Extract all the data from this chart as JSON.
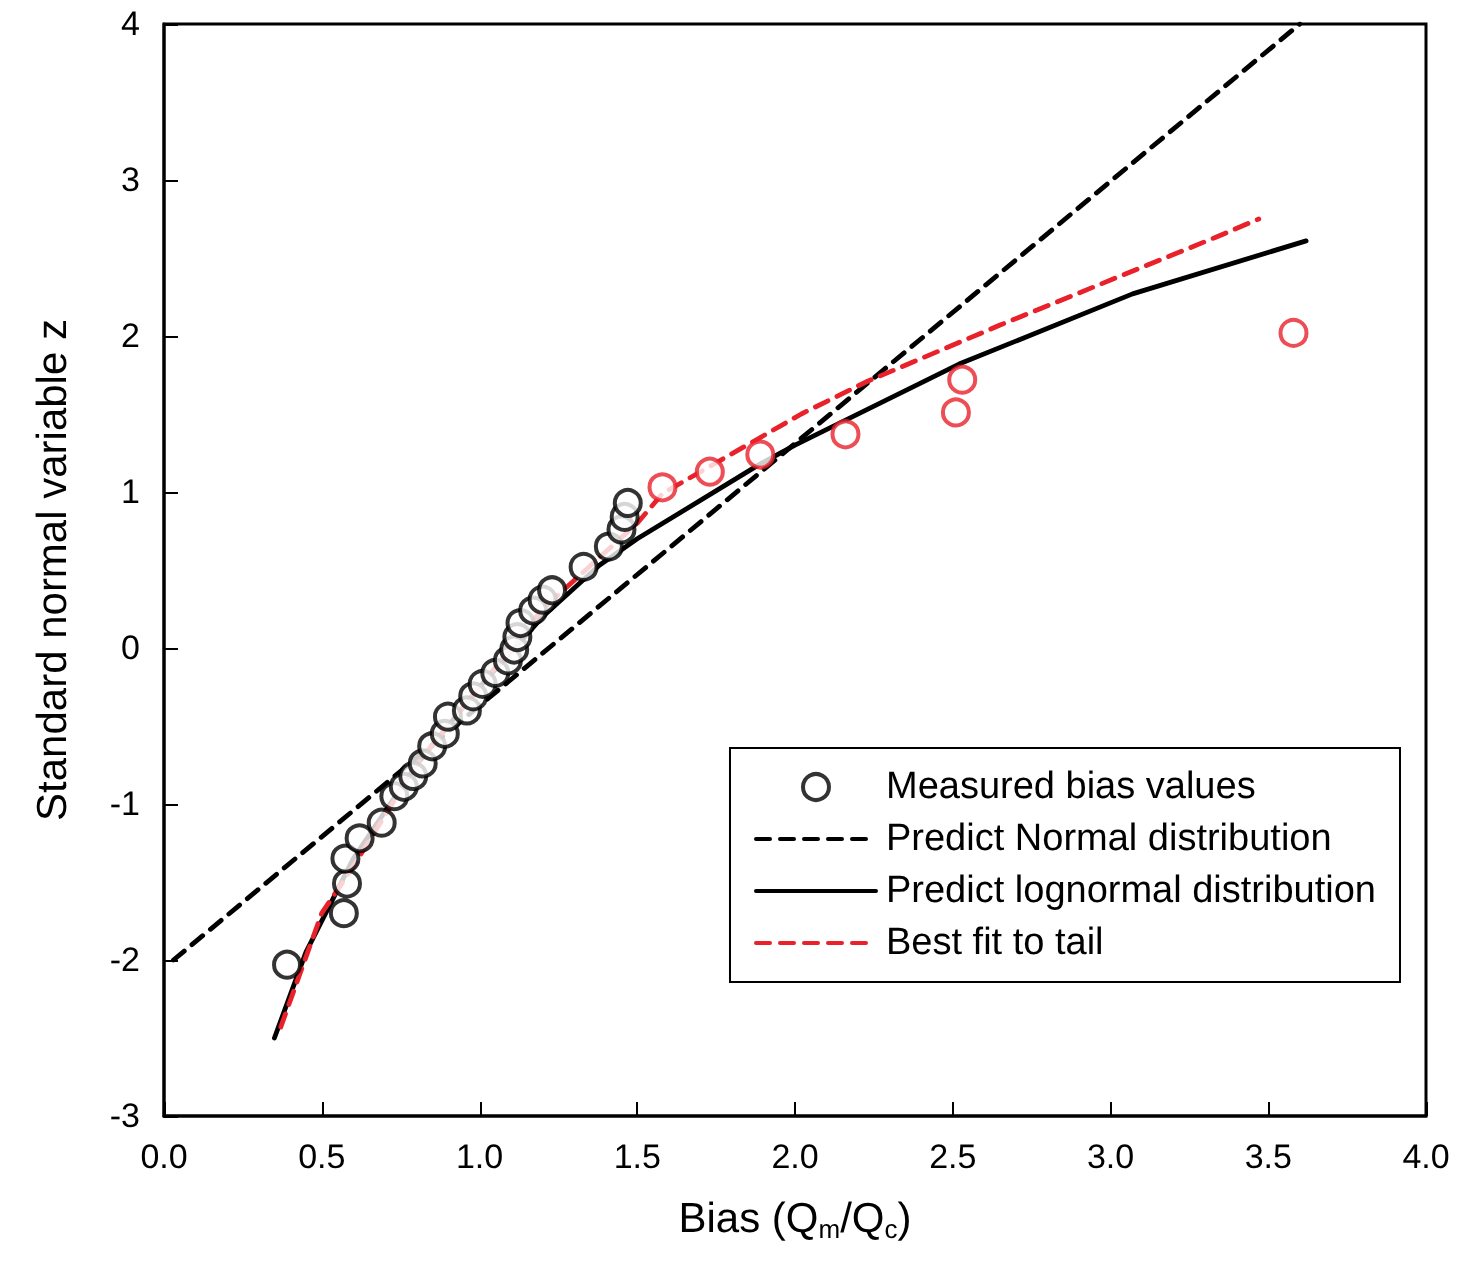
{
  "chart_data": {
    "type": "scatter",
    "xlabel": "Bias (Q$_{m}$/Q$_{c}$)",
    "ylabel": "Standard normal variable z",
    "xlim": [
      0,
      4
    ],
    "ylim": [
      -3,
      4
    ],
    "xticks": [
      {
        "value": 0,
        "label": "0.0"
      },
      {
        "value": 0.5,
        "label": "0.5"
      },
      {
        "value": 1,
        "label": "1.0"
      },
      {
        "value": 1.5,
        "label": "1.5"
      },
      {
        "value": 2,
        "label": "2.0"
      },
      {
        "value": 2.5,
        "label": "2.5"
      },
      {
        "value": 3,
        "label": "3.0"
      },
      {
        "value": 3.5,
        "label": "3.5"
      },
      {
        "value": 4,
        "label": "4.0"
      }
    ],
    "yticks": [
      -3,
      -2,
      -1,
      0,
      1,
      2,
      3,
      4
    ],
    "grid": false,
    "legend": "bottom right",
    "series": [
      {
        "name": "Measured bias values",
        "marker": "circle",
        "color": "#000000",
        "x": [
          0.39,
          0.57,
          0.58,
          0.575,
          0.62,
          0.69,
          0.73,
          0.76,
          0.79,
          0.82,
          0.85,
          0.89,
          0.9,
          0.96,
          0.98,
          1.01,
          1.05,
          1.09,
          1.11,
          1.12,
          1.13,
          1.17,
          1.2,
          1.23,
          1.33,
          1.41,
          1.45,
          1.46,
          1.47
        ],
        "values": [
          -2.03,
          -1.7,
          -1.51,
          -1.35,
          -1.22,
          -1.12,
          -0.95,
          -0.89,
          -0.82,
          -0.74,
          -0.63,
          -0.55,
          -0.44,
          -0.4,
          -0.31,
          -0.23,
          -0.16,
          -0.08,
          -0.01,
          0.07,
          0.16,
          0.24,
          0.31,
          0.37,
          0.52,
          0.65,
          0.76,
          0.84,
          0.93
        ]
      },
      {
        "marker": "circle",
        "color": "#e8212a",
        "x": [
          1.58,
          1.73,
          1.89,
          2.16,
          2.51,
          2.53,
          3.58
        ],
        "values": [
          1.03,
          1.13,
          1.24,
          1.37,
          1.51,
          1.72,
          2.02
        ]
      },
      {
        "name": "Predict Normal distribution",
        "type": "line",
        "marker": "none",
        "line_style": "dashed",
        "color": "#000000",
        "x": [
          0.03,
          3.6
        ],
        "values": [
          -2.0,
          4.0
        ]
      },
      {
        "name": "Predict lognormal distribution",
        "type": "line",
        "marker": "none",
        "line_style": "solid",
        "color": "#000000",
        "x": [
          0.35,
          0.45,
          0.6,
          0.8,
          1.0,
          1.2,
          1.38,
          1.5,
          1.89,
          2.0,
          2.52,
          3.07,
          3.62
        ],
        "values": [
          -2.5,
          -1.95,
          -1.35,
          -0.75,
          -0.25,
          0.2,
          0.53,
          0.7,
          1.18,
          1.3,
          1.82,
          2.27,
          2.61
        ]
      },
      {
        "name": "Best fit to tail",
        "type": "line",
        "marker": "none",
        "line_style": "dashed",
        "color": "#e8212a",
        "x": [
          0.37,
          0.5,
          0.6,
          0.8,
          1.0,
          1.2,
          1.5,
          1.58,
          2.02,
          2.23,
          2.65,
          3.33,
          3.47
        ],
        "values": [
          -2.43,
          -1.7,
          -1.4,
          -0.75,
          -0.25,
          0.25,
          0.8,
          0.99,
          1.5,
          1.71,
          2.07,
          2.63,
          2.75
        ]
      }
    ]
  }
}
